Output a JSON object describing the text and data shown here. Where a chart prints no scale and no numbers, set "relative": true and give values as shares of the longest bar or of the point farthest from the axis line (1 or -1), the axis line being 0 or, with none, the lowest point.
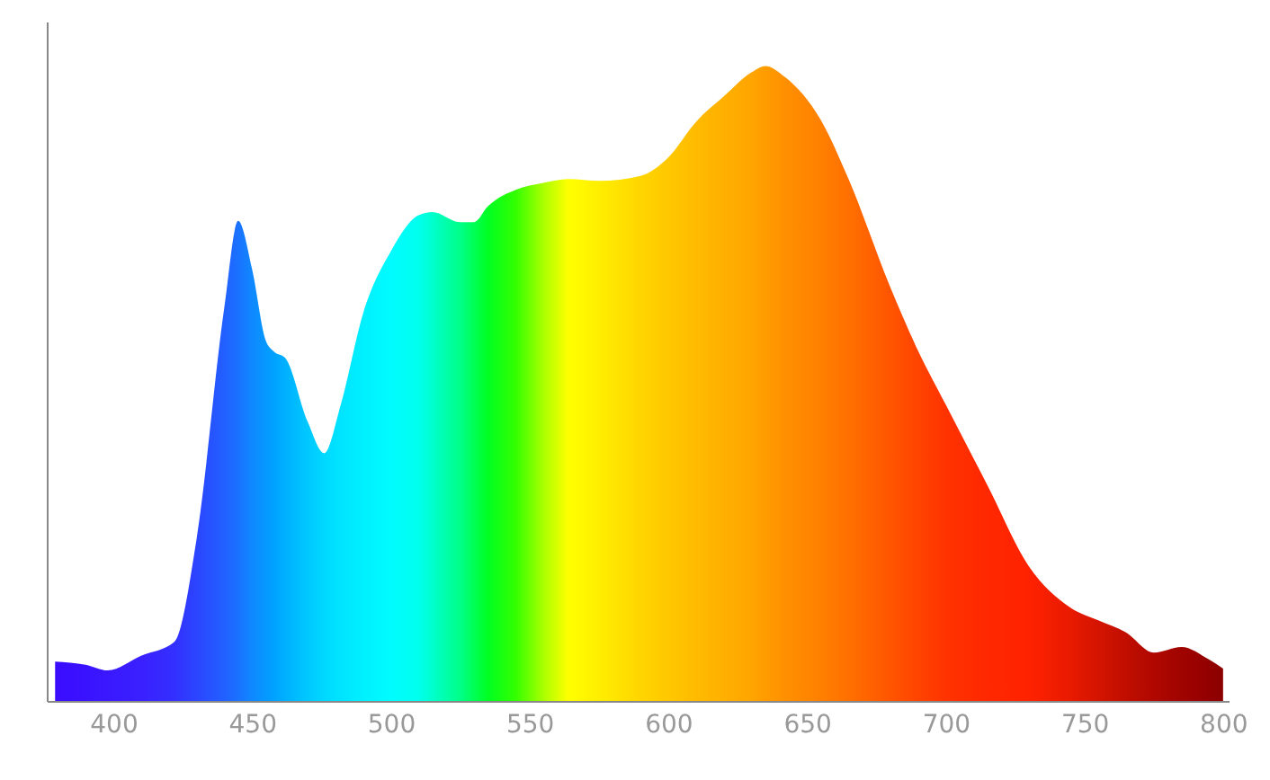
{
  "chart_data": {
    "type": "area",
    "relative": true,
    "grid": false,
    "x": [
      379,
      390,
      398,
      410,
      422,
      430,
      440,
      445,
      450,
      455,
      458,
      462,
      470,
      476,
      482,
      490,
      500,
      510,
      515,
      525,
      530,
      535,
      545,
      555,
      564,
      575,
      590,
      600,
      610,
      620,
      630,
      635,
      642,
      655,
      665,
      680,
      690,
      700,
      715,
      730,
      745,
      755,
      765,
      775,
      785,
      795,
      800
    ],
    "values": [
      0.062,
      0.057,
      0.048,
      0.071,
      0.093,
      0.255,
      0.62,
      0.756,
      0.68,
      0.567,
      0.55,
      0.54,
      0.44,
      0.39,
      0.467,
      0.61,
      0.708,
      0.765,
      0.77,
      0.754,
      0.754,
      0.779,
      0.805,
      0.816,
      0.822,
      0.819,
      0.827,
      0.856,
      0.912,
      0.952,
      0.99,
      1.0,
      0.983,
      0.915,
      0.822,
      0.652,
      0.552,
      0.467,
      0.34,
      0.212,
      0.147,
      0.127,
      0.108,
      0.076,
      0.085,
      0.065,
      0.051
    ],
    "colors": [
      "#3a0cff",
      "#3a12ff",
      "#3a18ff",
      "#3a20ff",
      "#3330ff",
      "#2b45ff",
      "#2260ff",
      "#1a72ff",
      "#1088ff",
      "#0598ff",
      "#00a2ff",
      "#00b0ff",
      "#00c8ff",
      "#00d8ff",
      "#00e4ff",
      "#00f0ff",
      "#00fcff",
      "#00ffee",
      "#00ffcc",
      "#00ff88",
      "#00ff55",
      "#00ff22",
      "#33ff00",
      "#aaff00",
      "#ffff00",
      "#ffee00",
      "#ffd500",
      "#ffc800",
      "#ffbb00",
      "#ffb000",
      "#ffa500",
      "#ff9c00",
      "#ff9000",
      "#ff8000",
      "#ff7000",
      "#ff5500",
      "#ff4400",
      "#ff3300",
      "#ff2800",
      "#ff2200",
      "#e81a00",
      "#d41400",
      "#c00e00",
      "#b00800",
      "#a00400",
      "#930000",
      "#8b0000"
    ],
    "xlim": [
      376,
      802
    ],
    "xticks": [
      400,
      450,
      500,
      550,
      600,
      650,
      700,
      750,
      800
    ]
  }
}
